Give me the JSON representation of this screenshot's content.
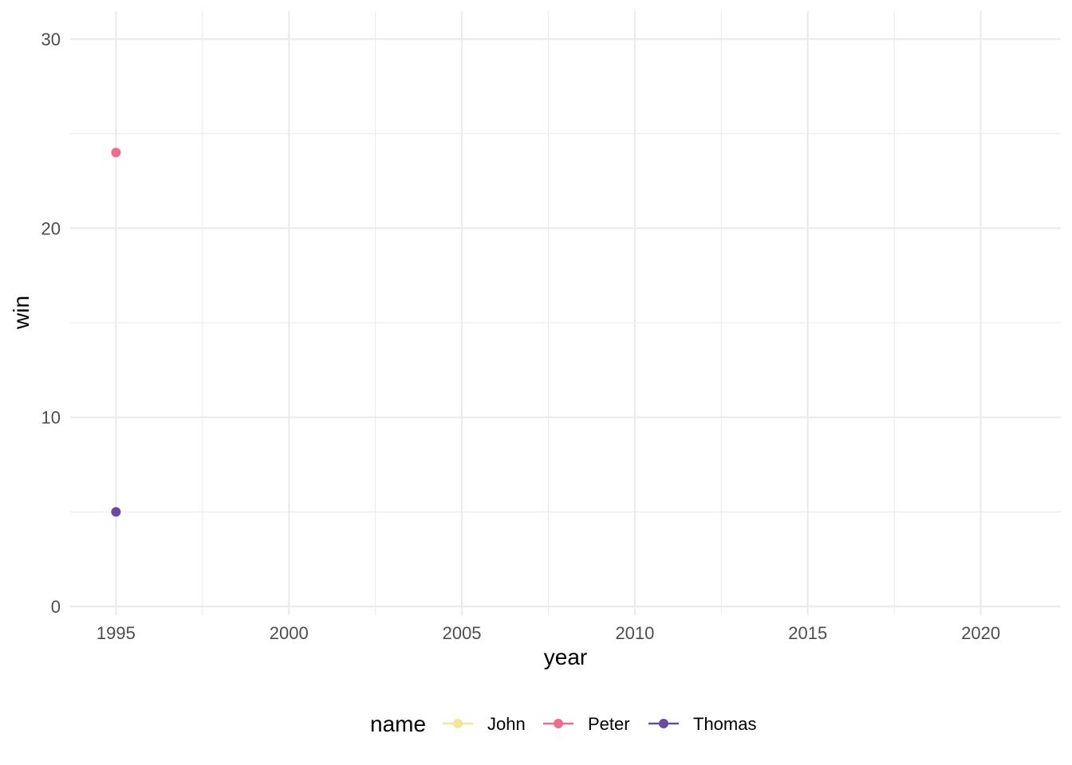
{
  "chart_data": {
    "type": "line",
    "xlabel": "year",
    "ylabel": "win",
    "xlim": [
      1993.7,
      2022.3
    ],
    "ylim": [
      0,
      30
    ],
    "x_ticks": [
      1995,
      2000,
      2005,
      2010,
      2015,
      2020
    ],
    "x_minor_ticks": [
      1997.5,
      2002.5,
      2007.5,
      2012.5,
      2017.5
    ],
    "y_ticks": [
      0,
      10,
      20,
      30
    ],
    "y_minor_ticks": [
      5,
      15,
      25
    ],
    "grid": true,
    "legend": {
      "title": "name",
      "position": "bottom"
    },
    "series": [
      {
        "name": "John",
        "color": "#F5E59B",
        "points": []
      },
      {
        "name": "Peter",
        "color": "#E8708E",
        "points": [
          {
            "x": 1995,
            "y": 24
          }
        ]
      },
      {
        "name": "Thomas",
        "color": "#6B4BA0",
        "points": [
          {
            "x": 1995,
            "y": 5
          }
        ]
      }
    ]
  }
}
